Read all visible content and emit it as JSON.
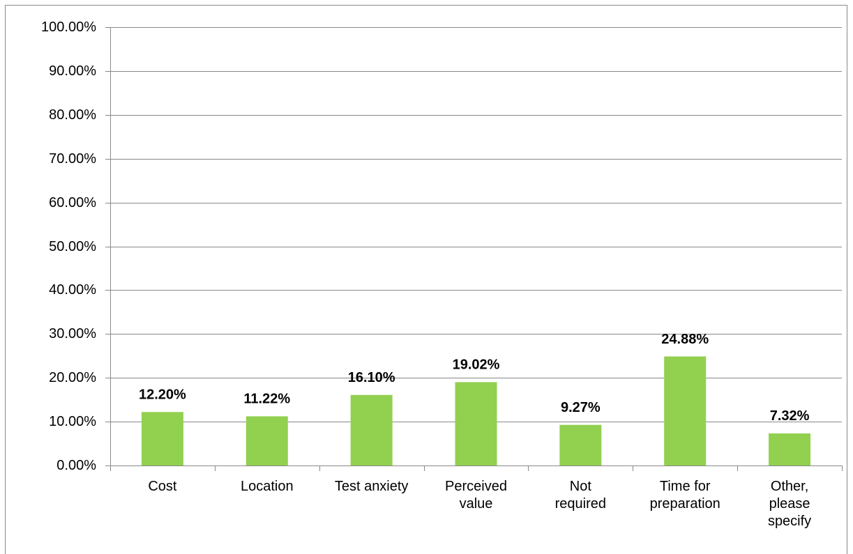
{
  "chart_data": {
    "type": "bar",
    "categories": [
      "Cost",
      "Location",
      "Test anxiety",
      "Perceived value",
      "Not required",
      "Time for preparation",
      "Other, please specify"
    ],
    "values": [
      12.2,
      11.22,
      16.1,
      19.02,
      9.27,
      24.88,
      7.32
    ],
    "value_labels": [
      "12.20%",
      "11.22%",
      "16.10%",
      "19.02%",
      "9.27%",
      "24.88%",
      "7.32%"
    ],
    "color": "#92d050",
    "ylim": [
      0,
      100
    ],
    "yticks": [
      {
        "value": 0,
        "label": "0.00%"
      },
      {
        "value": 10,
        "label": "10.00%"
      },
      {
        "value": 20,
        "label": "20.00%"
      },
      {
        "value": 30,
        "label": "30.00%"
      },
      {
        "value": 40,
        "label": "40.00%"
      },
      {
        "value": 50,
        "label": "50.00%"
      },
      {
        "value": 60,
        "label": "60.00%"
      },
      {
        "value": 70,
        "label": "70.00%"
      },
      {
        "value": 80,
        "label": "80.00%"
      },
      {
        "value": 90,
        "label": "90.00%"
      },
      {
        "value": 100,
        "label": "100.00%"
      }
    ],
    "grid": true
  }
}
